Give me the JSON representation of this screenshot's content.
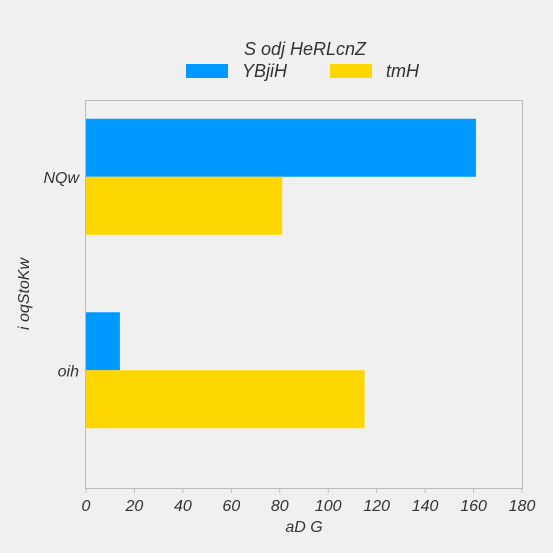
{
  "chart_data": {
    "type": "bar",
    "orientation": "horizontal",
    "legend_title": "S odj HeRLcnZ",
    "legend_placement": "top-center",
    "xlabel": "aD G",
    "ylabel": "i oqStoKw",
    "categories": [
      "NQw",
      "oih"
    ],
    "series": [
      {
        "name": "YBjiH",
        "color": "#0099ff",
        "values": [
          161,
          14
        ]
      },
      {
        "name": "tmH",
        "color": "#ffd700",
        "values": [
          81,
          115
        ]
      }
    ],
    "xlim": [
      0,
      180
    ],
    "xticks": [
      0,
      20,
      40,
      60,
      80,
      100,
      120,
      140,
      160,
      180
    ],
    "grid": false
  }
}
